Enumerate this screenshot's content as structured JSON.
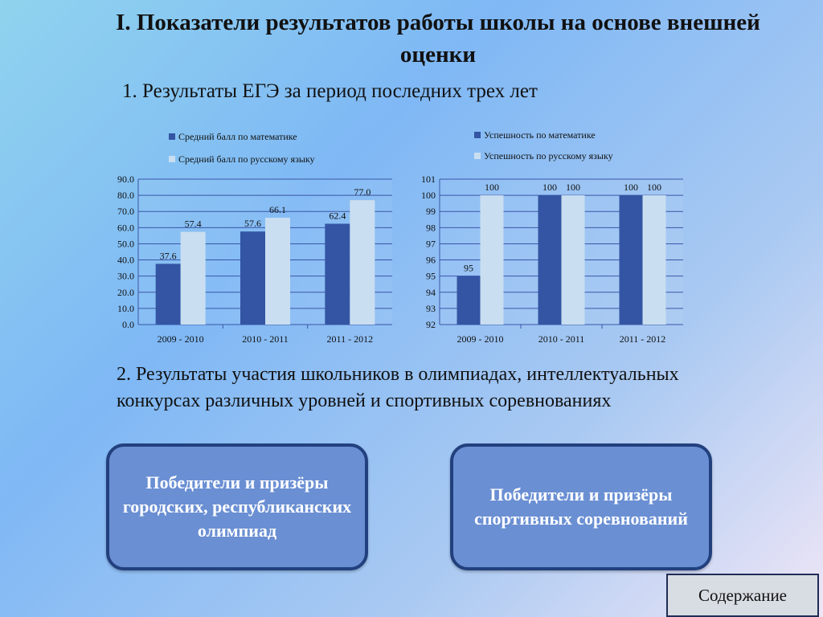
{
  "page": {
    "title": "I. Показатели результатов работы школы на основе внешней оценки",
    "section1": "1. Результаты ЕГЭ за период последних трех лет",
    "section2": "2. Результаты участия школьников в олимпиадах, интеллектуальных конкурсах различных уровней и спортивных соревнованиях",
    "card_left": "Победители и призёры городских, республиканских олимпиад",
    "card_right": "Победители и призёры спортивных соревнований",
    "nav_button": "Содержание"
  },
  "colors": {
    "series_dark": "#3355a3",
    "series_light": "#c9def0"
  },
  "chart_data": [
    {
      "type": "bar",
      "categories": [
        "2009 - 2010",
        "2010 - 2011",
        "2011 - 2012"
      ],
      "series": [
        {
          "name": "Средний балл по математике",
          "values": [
            37.6,
            57.6,
            62.4
          ],
          "labels": [
            "37.6",
            "57.6",
            "62.4"
          ]
        },
        {
          "name": "Средний балл по русскому языку",
          "values": [
            57.4,
            66.1,
            77.0
          ],
          "labels": [
            "57.4",
            "66.1",
            "77.0"
          ]
        }
      ],
      "ylim": [
        0,
        90
      ],
      "yticks": [
        "0.0",
        "10.0",
        "20.0",
        "30.0",
        "40.0",
        "50.0",
        "60.0",
        "70.0",
        "80.0",
        "90.0"
      ],
      "legend": "top-left",
      "grid": true
    },
    {
      "type": "bar",
      "categories": [
        "2009 - 2010",
        "2010 - 2011",
        "2011 - 2012"
      ],
      "series": [
        {
          "name": "Успешность по математике",
          "values": [
            95,
            100,
            100
          ],
          "labels": [
            "95",
            "100",
            "100"
          ]
        },
        {
          "name": "Успешность по русскому языку",
          "values": [
            100,
            100,
            100
          ],
          "labels": [
            "100",
            "100",
            "100"
          ]
        }
      ],
      "ylim": [
        92,
        101
      ],
      "yticks": [
        "92",
        "93",
        "94",
        "95",
        "96",
        "97",
        "98",
        "99",
        "100",
        "101"
      ],
      "legend": "top-left",
      "grid": true
    }
  ]
}
